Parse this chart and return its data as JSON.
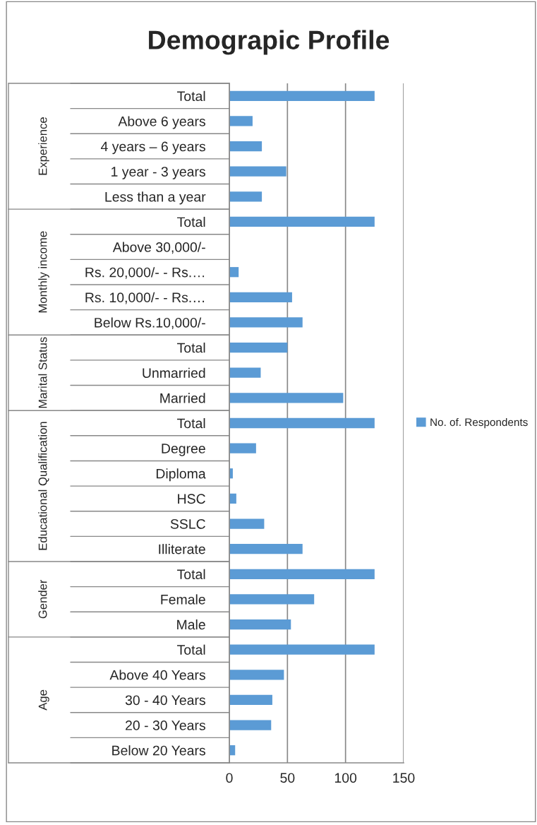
{
  "chart_data": {
    "type": "bar",
    "orientation": "horizontal",
    "title": "Demograpic Profile",
    "categories": [
      "Total",
      "Above 6 years",
      "4 years – 6 years",
      "1 year - 3 years",
      "Less than a year",
      "Total",
      "Above 30,000/-",
      "Rs. 20,000/- - Rs.…",
      "Rs. 10,000/- - Rs.…",
      "Below Rs.10,000/-",
      "Total",
      "Unmarried",
      "Married",
      "Total",
      "Degree",
      "Diploma",
      "HSC",
      "SSLC",
      "Illiterate",
      "Total",
      "Female",
      "Male",
      "Total",
      "Above 40 Years",
      "30 - 40 Years",
      "20 - 30 Years",
      "Below 20 Years"
    ],
    "series": [
      {
        "name": "No. of. Respondents",
        "color": "#5b9bd5",
        "values": [
          125,
          20,
          28,
          49,
          28,
          125,
          0,
          8,
          54,
          63,
          50,
          27,
          98,
          125,
          23,
          3,
          6,
          30,
          63,
          125,
          73,
          53,
          125,
          47,
          37,
          36,
          5
        ]
      }
    ],
    "annotations": [
      "Experience",
      "Monthly income",
      "Marital Status",
      "Educational Qualification",
      "Gender",
      "Age"
    ],
    "xlim": [
      0,
      150
    ],
    "xticks": [
      0,
      50,
      100,
      150
    ],
    "grid": "x",
    "legend": "right"
  }
}
